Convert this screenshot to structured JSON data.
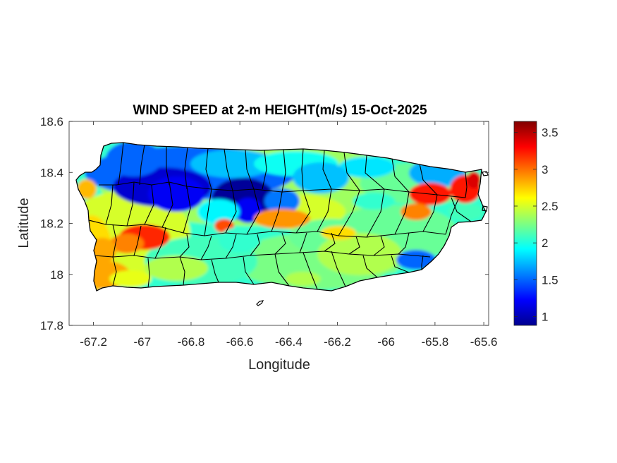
{
  "chart_data": {
    "type": "heatmap",
    "title": "WIND SPEED at 2-m HEIGHT(m/s) 15-Oct-2025",
    "xlabel": "Longitude",
    "ylabel": "Latitude",
    "xlim": [
      -67.3,
      -65.58
    ],
    "ylim": [
      17.8,
      18.6
    ],
    "x_ticks": [
      -67.2,
      -67,
      -66.8,
      -66.6,
      -66.4,
      -66.2,
      -66,
      -65.8,
      -65.6
    ],
    "x_tick_labels": [
      "-67.2",
      "-67",
      "-66.8",
      "-66.6",
      "-66.4",
      "-66.2",
      "-66",
      "-65.8",
      "-65.6"
    ],
    "y_ticks": [
      18.6,
      18.4,
      18.2,
      18.0,
      17.8
    ],
    "y_tick_labels": [
      "18.6",
      "18.4",
      "18.2",
      "18",
      "17.8"
    ],
    "colorbar": {
      "colormap": "jet",
      "range": [
        0.88,
        3.65
      ],
      "ticks": [
        1,
        1.5,
        2,
        2.5,
        3,
        3.5
      ],
      "tick_labels": [
        "1",
        "1.5",
        "2",
        "2.5",
        "3",
        "3.5"
      ]
    },
    "grid": false,
    "features": [
      {
        "lon": -66.9,
        "lat": 18.36,
        "value": 1.2
      },
      {
        "lon": -66.62,
        "lat": 18.29,
        "value": 0.9
      },
      {
        "lon": -66.58,
        "lat": 18.22,
        "value": 1.3
      },
      {
        "lon": -66.45,
        "lat": 18.4,
        "value": 1.8
      },
      {
        "lon": -66.75,
        "lat": 18.45,
        "value": 1.6
      },
      {
        "lon": -67.0,
        "lat": 18.15,
        "value": 3.0
      },
      {
        "lon": -67.22,
        "lat": 18.36,
        "value": 2.8
      },
      {
        "lon": -66.68,
        "lat": 18.18,
        "value": 3.0
      },
      {
        "lon": -66.42,
        "lat": 18.22,
        "value": 2.9
      },
      {
        "lon": -65.82,
        "lat": 18.29,
        "value": 3.3
      },
      {
        "lon": -65.65,
        "lat": 18.35,
        "value": 3.2
      },
      {
        "lon": -65.9,
        "lat": 18.07,
        "value": 1.6
      },
      {
        "lon": -66.1,
        "lat": 18.35,
        "value": 2.5
      }
    ]
  }
}
